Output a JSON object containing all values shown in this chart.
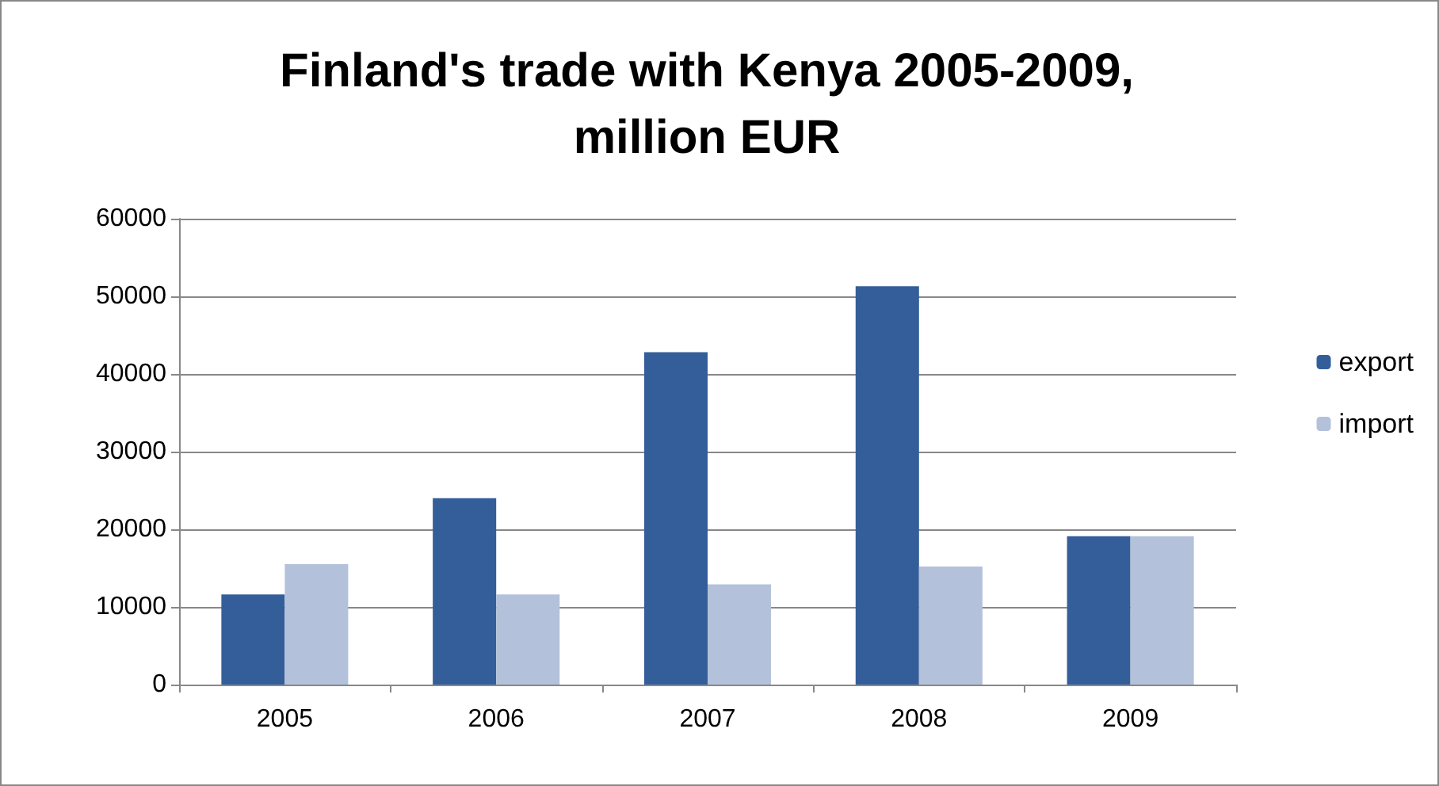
{
  "chart_data": {
    "type": "bar",
    "title": "Finland's trade with Kenya 2005-2009,\nmillion EUR",
    "categories": [
      "2005",
      "2006",
      "2007",
      "2008",
      "2009"
    ],
    "series": [
      {
        "name": "export",
        "color": "#345e99",
        "values": [
          11600,
          24000,
          42800,
          51300,
          19100
        ]
      },
      {
        "name": "import",
        "color": "#b3c2da",
        "values": [
          15500,
          11600,
          12900,
          15200,
          19100
        ]
      }
    ],
    "ylim": [
      0,
      60000
    ],
    "yticks": [
      0,
      10000,
      20000,
      30000,
      40000,
      50000,
      60000
    ],
    "grid": "y",
    "legend": "right"
  }
}
